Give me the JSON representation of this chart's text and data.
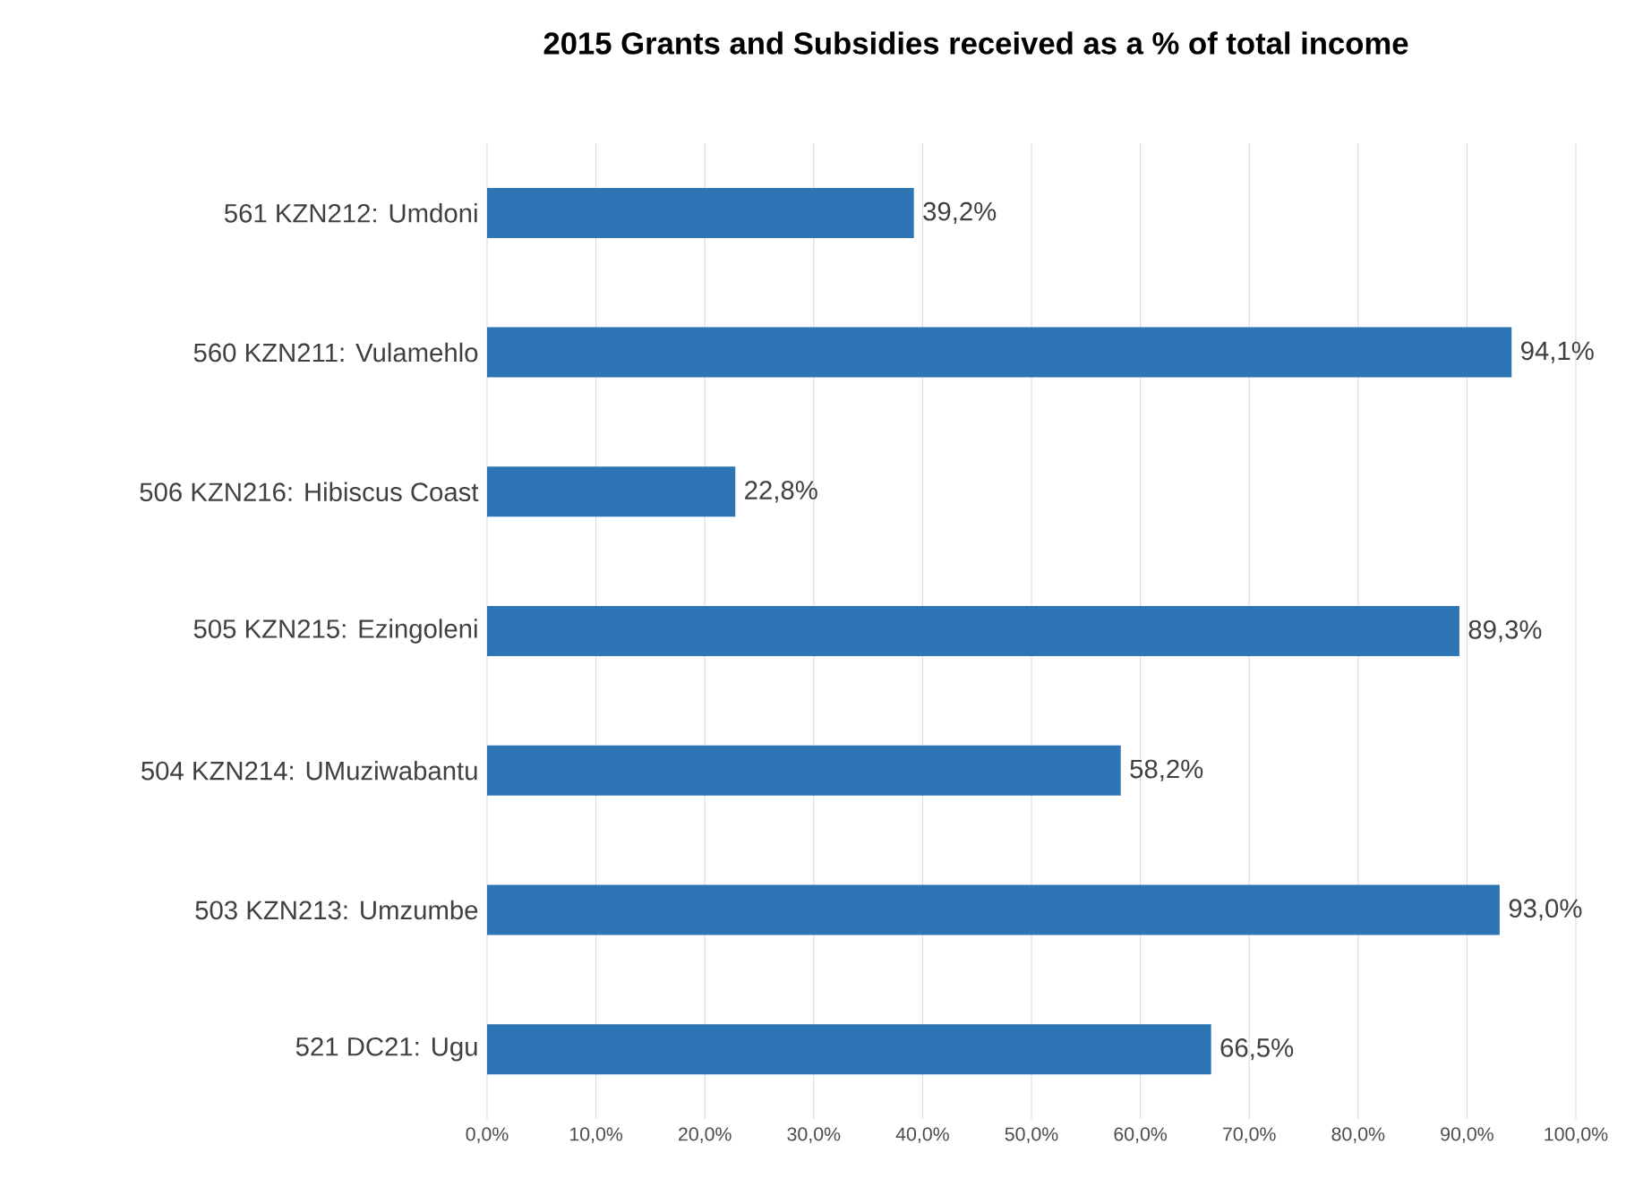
{
  "chart_data": {
    "type": "bar",
    "orientation": "horizontal",
    "title": "2015 Grants and Subsidies received as a % of total income",
    "categories": [
      "561 KZN212: Umdoni",
      "560 KZN211: Vulamehlo",
      "506 KZN216: Hibiscus Coast",
      "505 KZN215: Ezingoleni",
      "504 KZN214: UMuziwabantu",
      "503 KZN213: Umzumbe",
      "521 DC21: Ugu"
    ],
    "values": [
      39.2,
      94.1,
      22.8,
      89.3,
      58.2,
      93.0,
      66.5
    ],
    "value_labels": [
      "39,2%",
      "94,1%",
      "22,8%",
      "89,3%",
      "58,2%",
      "93,0%",
      "66,5%"
    ],
    "color": "#2e75b6",
    "xlim": [
      0,
      100
    ],
    "xticks": [
      {
        "value": 0,
        "label": "0,0%"
      },
      {
        "value": 10,
        "label": "10,0%"
      },
      {
        "value": 20,
        "label": "20,0%"
      },
      {
        "value": 30,
        "label": "30,0%"
      },
      {
        "value": 40,
        "label": "40,0%"
      },
      {
        "value": 50,
        "label": "50,0%"
      },
      {
        "value": 60,
        "label": "60,0%"
      },
      {
        "value": 70,
        "label": "70,0%"
      },
      {
        "value": 80,
        "label": "80,0%"
      },
      {
        "value": 90,
        "label": "90,0%"
      },
      {
        "value": 100,
        "label": "100,0%"
      }
    ],
    "grid": "x"
  }
}
